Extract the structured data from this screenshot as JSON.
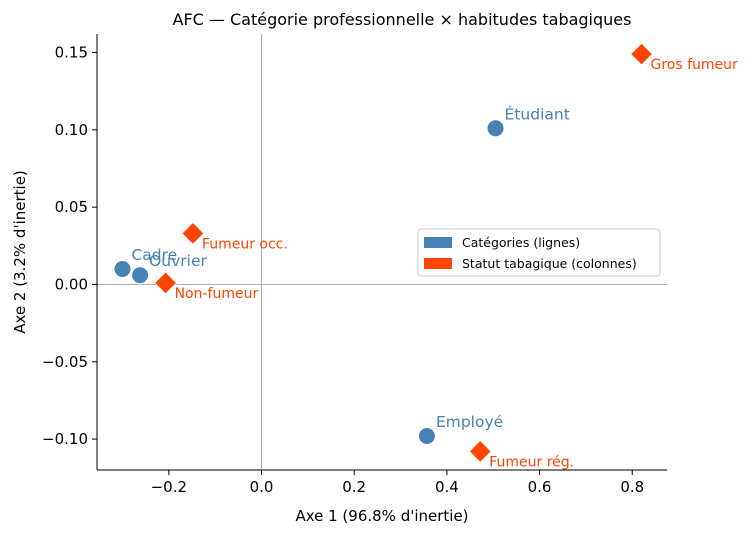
{
  "chart_data": {
    "type": "scatter",
    "title": "AFC — Catégorie professionnelle × habitudes tabagiques",
    "xlabel": "Axe 1 (96.8% d'inertie)",
    "ylabel": "Axe 2 (3.2% d'inertie)",
    "xlim": [
      -0.355,
      0.875
    ],
    "ylim": [
      -0.12,
      0.162
    ],
    "xticks": [
      -0.2,
      0.0,
      0.2,
      0.4,
      0.6,
      0.8
    ],
    "xtick_labels": [
      "−0.2",
      "0.0",
      "0.2",
      "0.4",
      "0.6",
      "0.8"
    ],
    "yticks": [
      -0.1,
      -0.05,
      0.0,
      0.05,
      0.1,
      0.15
    ],
    "ytick_labels": [
      "−0.10",
      "−0.05",
      "0.00",
      "0.05",
      "0.10",
      "0.15"
    ],
    "reference_lines": {
      "x": 0,
      "y": 0
    },
    "legend_position": "center-right",
    "series": [
      {
        "name": "Catégories (lignes)",
        "marker": "circle",
        "color": "#4682b4",
        "points": [
          {
            "label": "Cadre",
            "x": -0.3,
            "y": 0.01
          },
          {
            "label": "Ouvrier",
            "x": -0.262,
            "y": 0.006
          },
          {
            "label": "Étudiant",
            "x": 0.505,
            "y": 0.101
          },
          {
            "label": "Employé",
            "x": 0.357,
            "y": -0.098
          }
        ]
      },
      {
        "name": "Statut tabagique (colonnes)",
        "marker": "diamond",
        "color": "#ff4500",
        "points": [
          {
            "label": "Fumeur occ.",
            "x": -0.148,
            "y": 0.033
          },
          {
            "label": "Non-fumeur",
            "x": -0.207,
            "y": 0.001
          },
          {
            "label": "Gros fumeur",
            "x": 0.82,
            "y": 0.149
          },
          {
            "label": "Fumeur rég.",
            "x": 0.472,
            "y": -0.108
          }
        ]
      }
    ]
  }
}
